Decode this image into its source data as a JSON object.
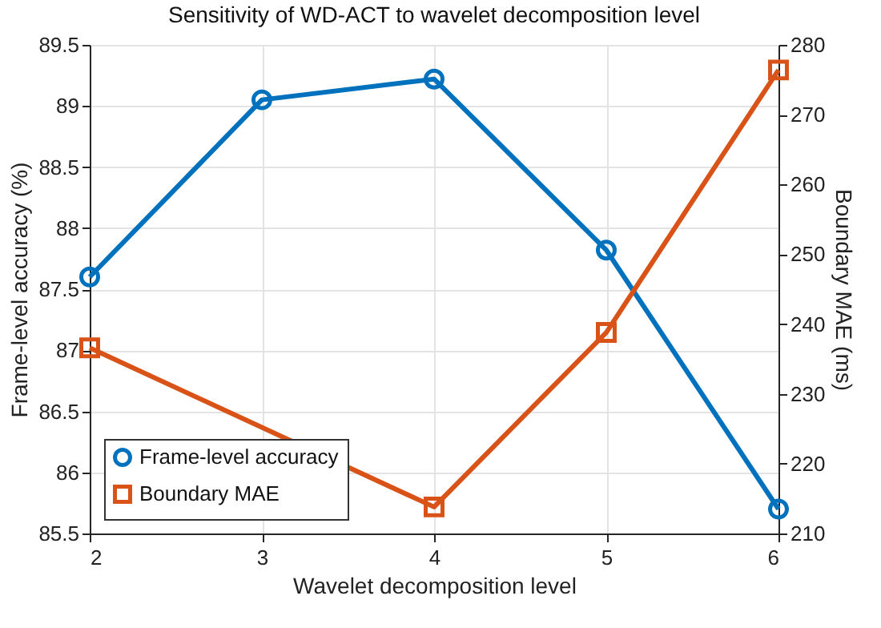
{
  "chart_data": {
    "type": "line",
    "title": "Sensitivity of WD-ACT to wavelet decomposition level",
    "xlabel": "Wavelet decomposition level",
    "ylabel": "Frame-level accuracy (%)",
    "y2label": "Boundary MAE (ms)",
    "x": [
      2,
      3,
      4,
      5,
      6
    ],
    "series": [
      {
        "name": "Frame-level accuracy",
        "color": "#0072bd",
        "marker": "circle",
        "values": [
          87.6,
          89.05,
          89.22,
          87.82,
          85.7
        ]
      },
      {
        "name": "Boundary MAE",
        "color": "#d95319",
        "marker": "square",
        "axis": "y2",
        "values": [
          236.6,
          null,
          213.8,
          238.8,
          276.4
        ]
      }
    ],
    "xlim": [
      2,
      6
    ],
    "xticks": [
      2,
      3,
      4,
      5,
      6
    ],
    "ylim": [
      85.5,
      89.5
    ],
    "yticks": [
      85.5,
      86,
      86.5,
      87,
      87.5,
      88,
      88.5,
      89,
      89.5
    ],
    "y2lim": [
      210,
      280
    ],
    "y2ticks": [
      210,
      220,
      230,
      240,
      250,
      260,
      270,
      280
    ],
    "grid": true,
    "legend": "bottom left",
    "line_style": "solid"
  }
}
